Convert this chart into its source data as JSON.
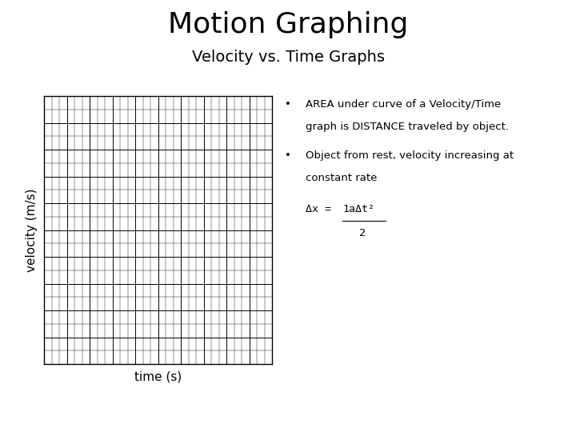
{
  "title": "Motion Graphing",
  "subtitle": "Velocity vs. Time Graphs",
  "title_fontsize": 26,
  "subtitle_fontsize": 14,
  "ylabel": "velocity (m/s)",
  "xlabel": "time (s)",
  "label_fontsize": 11,
  "background_color": "#ffffff",
  "grid_color": "#000000",
  "bullet1_line1": "AREA under curve of a Velocity/Time",
  "bullet1_line2": "graph is DISTANCE traveled by object.",
  "bullet2_line1": "Object from rest, velocity increasing at",
  "bullet2_line2": "constant rate",
  "formula_prefix": "Δx = ",
  "formula_numerator": "1aΔt²",
  "formula_denominator": "2",
  "text_fontsize": 9.5,
  "text_color": "#000000"
}
